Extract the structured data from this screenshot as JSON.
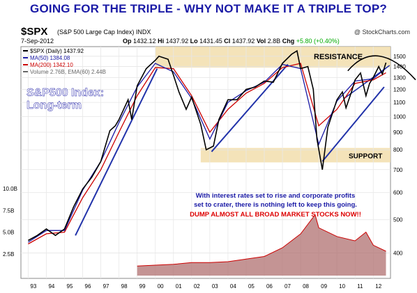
{
  "headline": "GOING FOR THE TRIPLE - WHY NOT MAKE IT A TRIPLE TOP?",
  "ticker": {
    "symbol": "$SPX",
    "name": "(S&P 500 Large Cap Index)",
    "exchange": "INDX",
    "brand": "@ StockCharts.com"
  },
  "quote": {
    "date": "7-Sep-2012",
    "op_label": "Op",
    "op": "1432.12",
    "hi_label": "Hi",
    "hi": "1437.92",
    "lo_label": "Lo",
    "lo": "1431.45",
    "cl_label": "Cl",
    "cl": "1437.92",
    "vol_label": "Vol",
    "vol": "2.8B",
    "chg_label": "Chg",
    "chg": "+5.80 (+0.40%)"
  },
  "legend": [
    {
      "text": "$SPX (Daily) 1437.92",
      "color": "#000000"
    },
    {
      "text": "MA(50) 1384.08",
      "color": "#1a1aa6"
    },
    {
      "text": "MA(200) 1342.10",
      "color": "#cc0000"
    },
    {
      "text": "Volume 2.76B, EMA(60) 2.44B",
      "color": "#666666"
    }
  ],
  "annotations": {
    "title": "S&P500 Index:",
    "subtitle": "Long-term",
    "resistance": "RESISTANCE",
    "support": "SUPPORT",
    "note_line1": "With interest rates set to rise and corporate profits",
    "note_line2": "set to crater, there is nothing left to keep this going.",
    "note_line3": "DUMP ALMOST ALL BROAD MARKET STOCKS NOW!!"
  },
  "colors": {
    "price": "#000000",
    "ma50": "#1a1aa6",
    "ma200": "#cc0000",
    "trendline": "#2233aa",
    "zone": "#f1dca8",
    "volume": "#b07070",
    "headline": "#1a1aa6",
    "note_blue": "#1a1aa6",
    "note_red": "#dd0000"
  },
  "chart_data": {
    "type": "line",
    "y_scale": "log",
    "ylim": [
      350,
      1600
    ],
    "y_ticks": [
      "1500",
      "1400",
      "1300",
      "1200",
      "1100",
      "1000",
      "900",
      "800",
      "700",
      "600",
      "500",
      "400"
    ],
    "x_ticks": [
      "93",
      "94",
      "95",
      "96",
      "97",
      "98",
      "99",
      "00",
      "01",
      "02",
      "03",
      "04",
      "05",
      "06",
      "07",
      "08",
      "09",
      "10",
      "11",
      "12"
    ],
    "volume_ticks": [
      "10.0B",
      "7.5B",
      "5.0B",
      "2.5B"
    ],
    "series": [
      {
        "name": "$SPX (Daily)",
        "x": [
          1993.0,
          1993.5,
          1994.0,
          1994.5,
          1995.0,
          1995.5,
          1996.0,
          1996.5,
          1997.0,
          1997.5,
          1997.8,
          1998.0,
          1998.5,
          1998.7,
          1999.0,
          1999.5,
          2000.0,
          2000.2,
          2000.7,
          2001.0,
          2001.3,
          2001.7,
          2002.0,
          2002.5,
          2002.8,
          2003.2,
          2003.5,
          2004.0,
          2004.5,
          2005.0,
          2005.5,
          2006.0,
          2006.5,
          2007.0,
          2007.5,
          2007.8,
          2008.0,
          2008.4,
          2008.7,
          2008.9,
          2009.2,
          2009.5,
          2010.0,
          2010.3,
          2010.5,
          2010.8,
          2011.0,
          2011.3,
          2011.6,
          2011.8,
          2012.0,
          2012.3,
          2012.5,
          2012.7
        ],
        "values": [
          435,
          450,
          470,
          450,
          470,
          545,
          615,
          665,
          740,
          910,
          940,
          980,
          1120,
          980,
          1230,
          1380,
          1460,
          1500,
          1470,
          1320,
          1180,
          1050,
          1140,
          950,
          800,
          820,
          980,
          1120,
          1120,
          1200,
          1220,
          1270,
          1260,
          1430,
          1520,
          1555,
          1380,
          1400,
          1200,
          860,
          700,
          930,
          1120,
          1180,
          1060,
          1180,
          1280,
          1340,
          1150,
          1250,
          1300,
          1400,
          1330,
          1437
        ]
      },
      {
        "name": "MA(50)",
        "x": [
          1993.0,
          1994.0,
          1995.0,
          1996.0,
          1997.0,
          1998.0,
          1999.0,
          2000.0,
          2001.0,
          2002.0,
          2003.0,
          2004.0,
          2005.0,
          2006.0,
          2007.0,
          2008.0,
          2009.0,
          2010.0,
          2011.0,
          2012.0,
          2012.7
        ],
        "values": [
          430,
          465,
          465,
          610,
          740,
          960,
          1220,
          1430,
          1350,
          1130,
          860,
          1100,
          1190,
          1260,
          1420,
          1380,
          830,
          1110,
          1270,
          1290,
          1384
        ]
      },
      {
        "name": "MA(200)",
        "x": [
          1993.0,
          1994.0,
          1995.0,
          1996.0,
          1997.0,
          1998.0,
          1999.0,
          2000.0,
          2001.0,
          2002.0,
          2003.0,
          2004.0,
          2005.0,
          2006.0,
          2007.0,
          2008.0,
          2009.0,
          2010.0,
          2011.0,
          2012.0,
          2012.7
        ],
        "values": [
          425,
          455,
          460,
          580,
          700,
          900,
          1150,
          1390,
          1380,
          1150,
          900,
          1050,
          1170,
          1250,
          1390,
          1430,
          940,
          1050,
          1250,
          1280,
          1342
        ]
      },
      {
        "name": "Volume",
        "x": [
          1999.0,
          2000.0,
          2001.0,
          2002.0,
          2003.0,
          2004.0,
          2005.0,
          2006.0,
          2007.0,
          2008.0,
          2008.8,
          2009.0,
          2010.0,
          2011.0,
          2011.6,
          2012.0,
          2012.7
        ],
        "values": [
          1.1,
          1.2,
          1.3,
          1.5,
          1.5,
          1.6,
          1.9,
          2.2,
          3.2,
          4.8,
          7.0,
          5.5,
          4.5,
          4.0,
          5.0,
          3.5,
          2.8
        ]
      }
    ]
  }
}
